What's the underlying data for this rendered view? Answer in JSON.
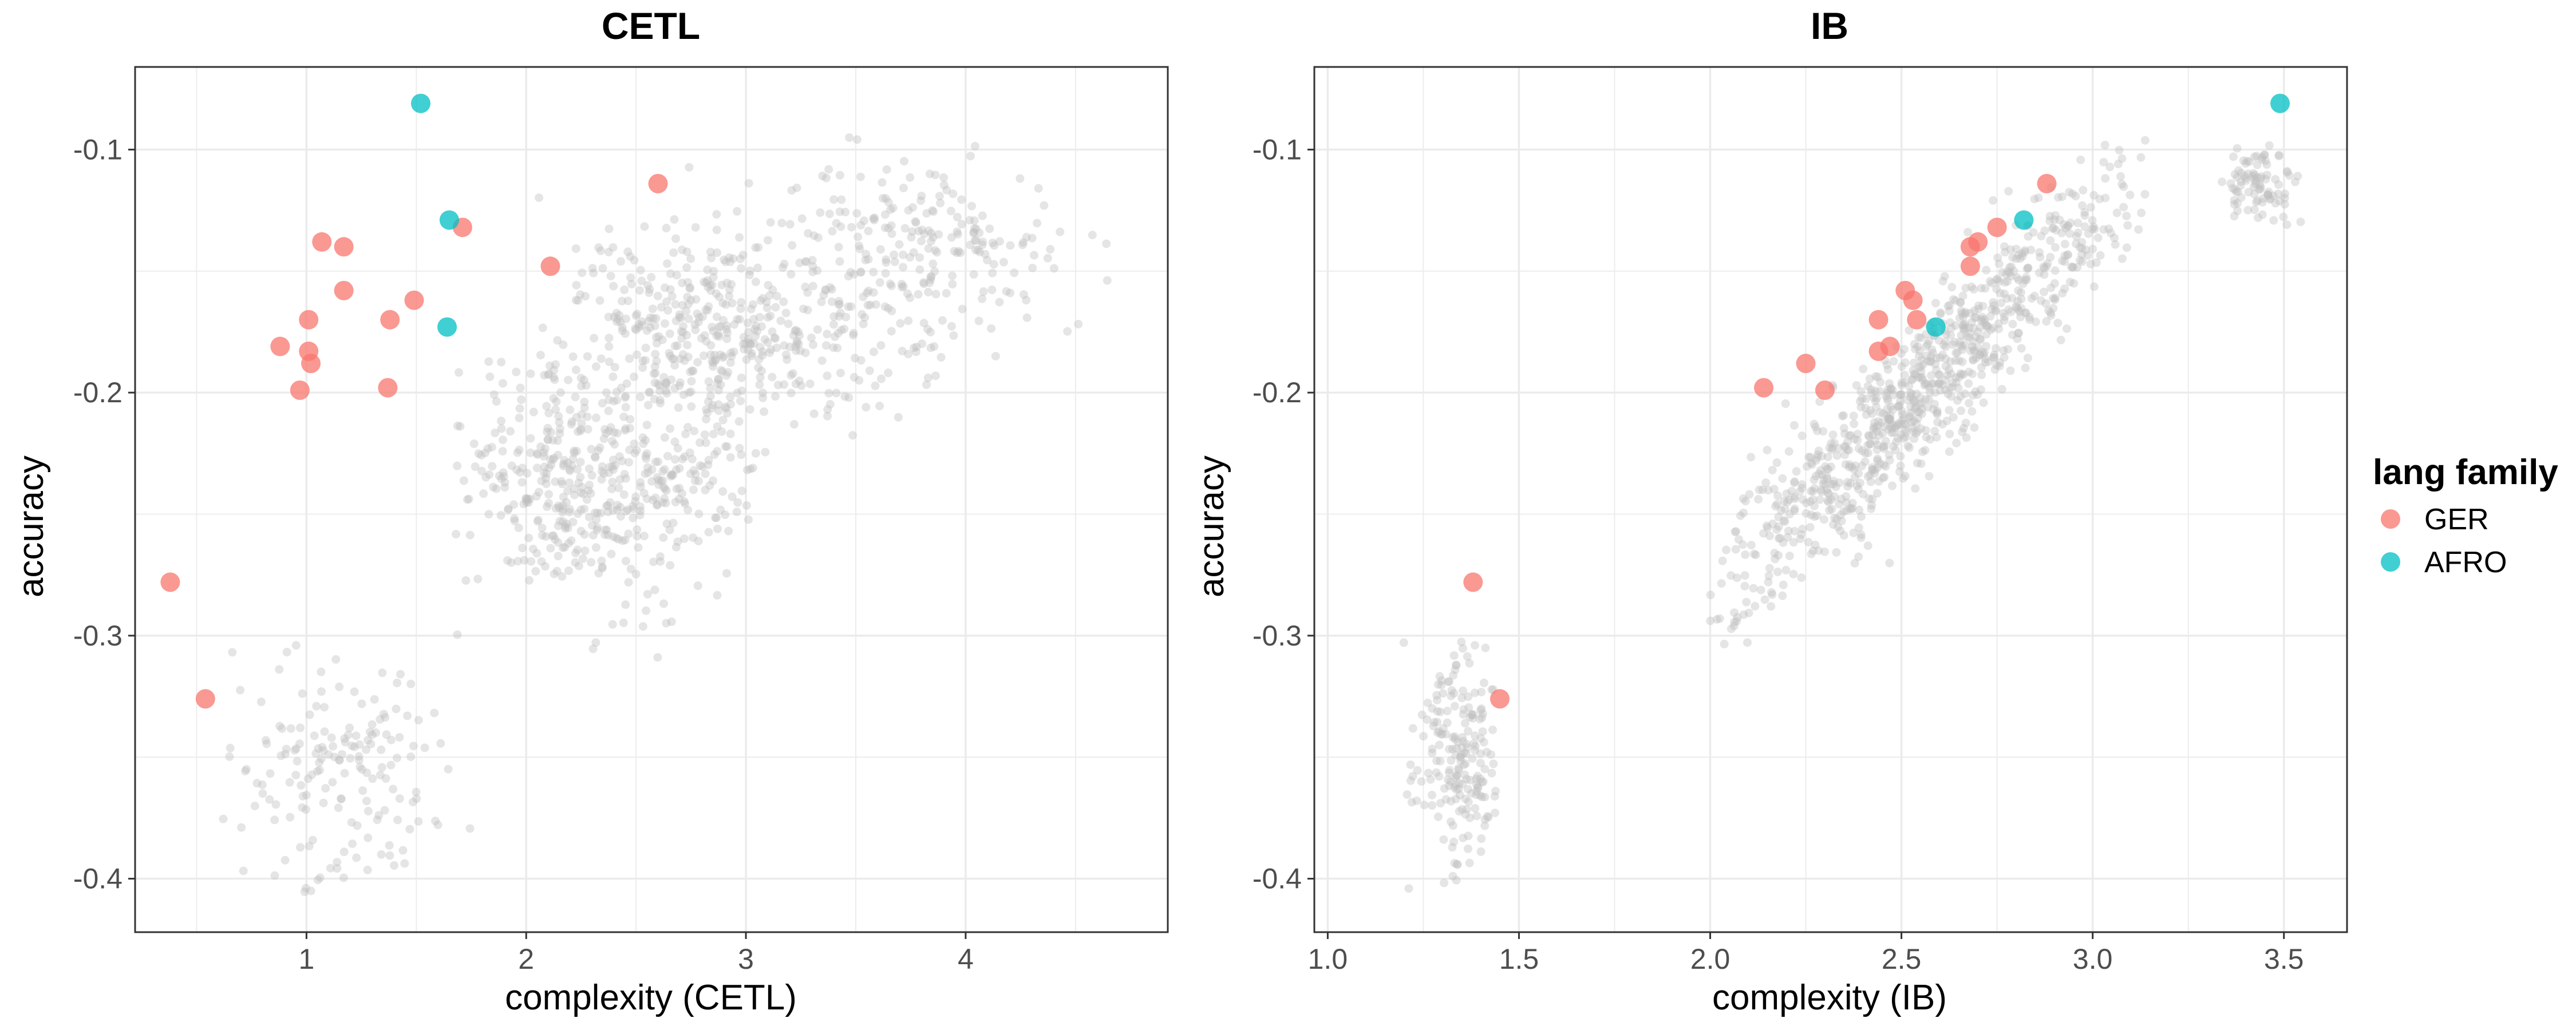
{
  "chart_data": [
    {
      "type": "scatter",
      "title": "CETL",
      "xlabel": "complexity (CETL)",
      "ylabel": "accuracy",
      "xlim": [
        0.22,
        4.92
      ],
      "ylim": [
        -0.422,
        -0.066
      ],
      "xticks": [
        1,
        2,
        3,
        4
      ],
      "yticks": [
        -0.4,
        -0.3,
        -0.2,
        -0.1
      ],
      "grid": true,
      "series": [
        {
          "name": "GER",
          "color": "#F8766D",
          "points": [
            {
              "x": 0.38,
              "y": -0.278
            },
            {
              "x": 0.54,
              "y": -0.326
            },
            {
              "x": 0.88,
              "y": -0.181
            },
            {
              "x": 0.97,
              "y": -0.199
            },
            {
              "x": 1.01,
              "y": -0.17
            },
            {
              "x": 1.01,
              "y": -0.183
            },
            {
              "x": 1.02,
              "y": -0.188
            },
            {
              "x": 1.07,
              "y": -0.138
            },
            {
              "x": 1.17,
              "y": -0.14
            },
            {
              "x": 1.17,
              "y": -0.158
            },
            {
              "x": 1.37,
              "y": -0.198
            },
            {
              "x": 1.38,
              "y": -0.17
            },
            {
              "x": 1.49,
              "y": -0.162
            },
            {
              "x": 1.71,
              "y": -0.132
            },
            {
              "x": 2.11,
              "y": -0.148
            },
            {
              "x": 2.6,
              "y": -0.114
            }
          ]
        },
        {
          "name": "AFRO",
          "color": "#00BFC4",
          "points": [
            {
              "x": 1.52,
              "y": -0.081
            },
            {
              "x": 1.65,
              "y": -0.129
            },
            {
              "x": 1.64,
              "y": -0.173
            }
          ]
        }
      ],
      "background_clusters": [
        {
          "cx": 2.35,
          "cy": -0.235,
          "sx": 0.35,
          "sy": 0.027,
          "n": 500,
          "xmin": 1.68,
          "xmax": 3.05,
          "ymin": -0.31,
          "ymax": -0.185
        },
        {
          "cx": 2.95,
          "cy": -0.172,
          "sx": 0.4,
          "sy": 0.023,
          "n": 480,
          "xmin": 2.05,
          "xmax": 3.9,
          "ymin": -0.225,
          "ymax": -0.098
        },
        {
          "cx": 3.85,
          "cy": -0.14,
          "sx": 0.33,
          "sy": 0.022,
          "n": 200,
          "xmin": 3.3,
          "xmax": 4.65,
          "ymin": -0.2,
          "ymax": -0.095
        },
        {
          "cx": 1.12,
          "cy": -0.355,
          "sx": 0.26,
          "sy": 0.023,
          "n": 170,
          "xmin": 0.62,
          "xmax": 1.75,
          "ymin": -0.407,
          "ymax": -0.302
        }
      ]
    },
    {
      "type": "scatter",
      "title": "IB",
      "xlabel": "complexity (IB)",
      "ylabel": "accuracy",
      "xlim": [
        0.965,
        3.665
      ],
      "ylim": [
        -0.422,
        -0.066
      ],
      "xticks": [
        "1.0",
        "1.5",
        "2.0",
        "2.5",
        "3.0",
        "3.5"
      ],
      "yticks": [
        -0.4,
        -0.3,
        -0.2,
        -0.1
      ],
      "grid": true,
      "series": [
        {
          "name": "GER",
          "color": "#F8766D",
          "points": [
            {
              "x": 1.38,
              "y": -0.278
            },
            {
              "x": 1.45,
              "y": -0.326
            },
            {
              "x": 2.14,
              "y": -0.198
            },
            {
              "x": 2.25,
              "y": -0.188
            },
            {
              "x": 2.3,
              "y": -0.199
            },
            {
              "x": 2.44,
              "y": -0.17
            },
            {
              "x": 2.44,
              "y": -0.183
            },
            {
              "x": 2.47,
              "y": -0.181
            },
            {
              "x": 2.51,
              "y": -0.158
            },
            {
              "x": 2.53,
              "y": -0.162
            },
            {
              "x": 2.54,
              "y": -0.17
            },
            {
              "x": 2.68,
              "y": -0.14
            },
            {
              "x": 2.68,
              "y": -0.148
            },
            {
              "x": 2.7,
              "y": -0.138
            },
            {
              "x": 2.75,
              "y": -0.132
            },
            {
              "x": 2.88,
              "y": -0.114
            }
          ]
        },
        {
          "name": "AFRO",
          "color": "#00BFC4",
          "points": [
            {
              "x": 2.59,
              "y": -0.173
            },
            {
              "x": 2.82,
              "y": -0.129
            },
            {
              "x": 3.49,
              "y": -0.081
            }
          ]
        }
      ],
      "background_clusters": [
        {
          "cx": 2.55,
          "cy": -0.2,
          "sx": 0.3,
          "sy": 0.05,
          "n": 900,
          "diagonal": true,
          "slope": 0.155,
          "scatter_y": 0.016,
          "xmin": 2.0,
          "xmax": 3.15,
          "ymin": -0.31,
          "ymax": -0.095
        },
        {
          "cx": 1.36,
          "cy": -0.35,
          "sx": 0.06,
          "sy": 0.023,
          "n": 200,
          "xmin": 1.08,
          "xmax": 1.44,
          "ymin": -0.407,
          "ymax": -0.302
        },
        {
          "cx": 3.43,
          "cy": -0.115,
          "sx": 0.05,
          "sy": 0.009,
          "n": 90,
          "xmin": 3.3,
          "xmax": 3.56,
          "ymin": -0.135,
          "ymax": -0.098
        }
      ]
    }
  ],
  "legend": {
    "title": "lang family",
    "items": [
      {
        "label": "GER",
        "color": "#F8766D"
      },
      {
        "label": "AFRO",
        "color": "#00BFC4"
      }
    ]
  },
  "colors": {
    "background_points": "#BEBEBE",
    "grid": "#EBEBEB",
    "panel_border": "#333333"
  }
}
